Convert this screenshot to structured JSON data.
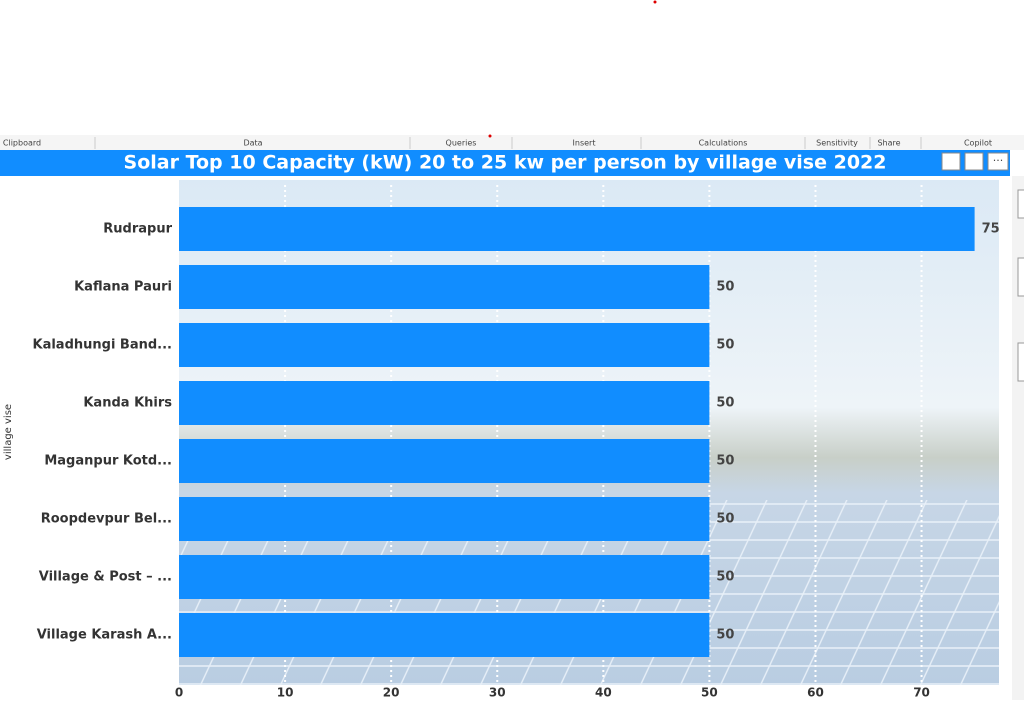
{
  "ribbon": [
    "Clipboard",
    "Data",
    "Queries",
    "Insert",
    "Calculations",
    "Sensitivity",
    "Share",
    "Copilot"
  ],
  "chart_data": {
    "type": "hbar",
    "title": "Solar Top 10 Capacity (kW) 20 to 25 kw per person by village vise 2022",
    "ylabel": "village vise",
    "categories": [
      "Rudrapur",
      "Kaflana Pauri",
      "Kaladhungi Band...",
      "Kanda Khirs",
      "Maganpur Kotd...",
      "Roopdevpur Bel...",
      "Village & Post – ...",
      "Village Karash A..."
    ],
    "values": [
      75,
      50,
      50,
      50,
      50,
      50,
      50,
      50
    ],
    "color": "#118dff",
    "xlim": [
      0,
      77.3
    ],
    "xticks": [
      0,
      10,
      20,
      30,
      40,
      50,
      60,
      70
    ],
    "grid": true
  }
}
